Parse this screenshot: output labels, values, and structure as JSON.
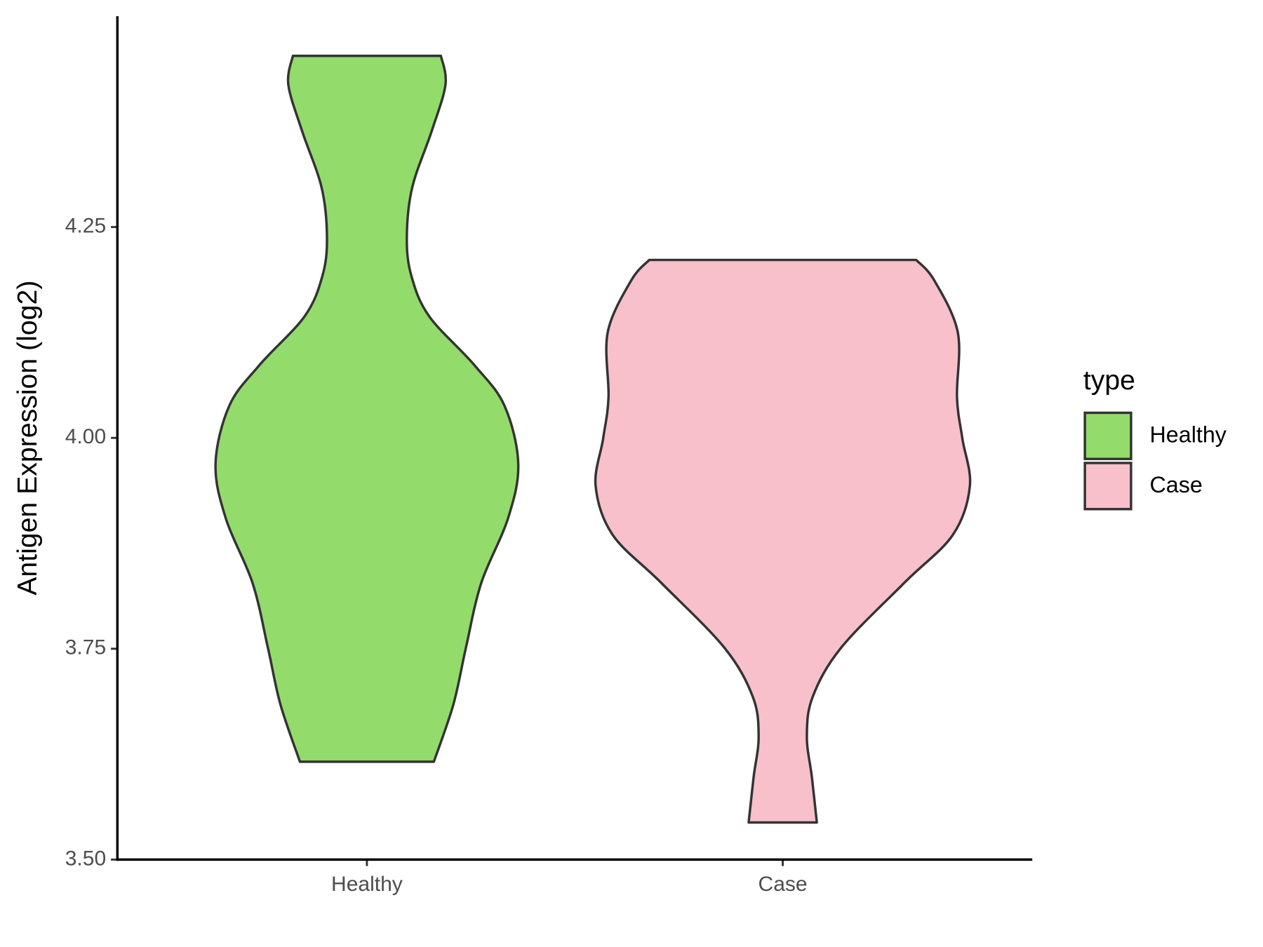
{
  "chart_data": {
    "type": "violin",
    "ylabel": "Antigen Expression (log2)",
    "categories": [
      "Healthy",
      "Case"
    ],
    "ylim": [
      3.5,
      4.5
    ],
    "yticks": [
      {
        "value": 3.5,
        "label": "3.50"
      },
      3.75,
      {
        "value": 4.0,
        "label": "4.00"
      },
      4.25
    ],
    "legend_title": "type",
    "legend": "right",
    "series": [
      {
        "name": "Healthy",
        "color": "#93dc6b",
        "y": [
          4.453,
          4.419,
          4.364,
          4.297,
          4.238,
          4.192,
          4.144,
          4.086,
          4.038,
          3.969,
          3.904,
          3.828,
          3.751,
          3.684,
          3.616
        ],
        "width": [
          0.178,
          0.189,
          0.156,
          0.109,
          0.096,
          0.107,
          0.15,
          0.259,
          0.331,
          0.364,
          0.339,
          0.275,
          0.238,
          0.208,
          0.161
        ]
      },
      {
        "name": "Case",
        "color": "#f7c0cb",
        "y": [
          4.211,
          4.187,
          4.125,
          4.048,
          3.999,
          3.943,
          3.885,
          3.828,
          3.751,
          3.693,
          3.646,
          3.598,
          3.544
        ],
        "width": [
          0.321,
          0.364,
          0.421,
          0.419,
          0.432,
          0.45,
          0.409,
          0.292,
          0.14,
          0.072,
          0.058,
          0.07,
          0.082
        ]
      }
    ]
  }
}
